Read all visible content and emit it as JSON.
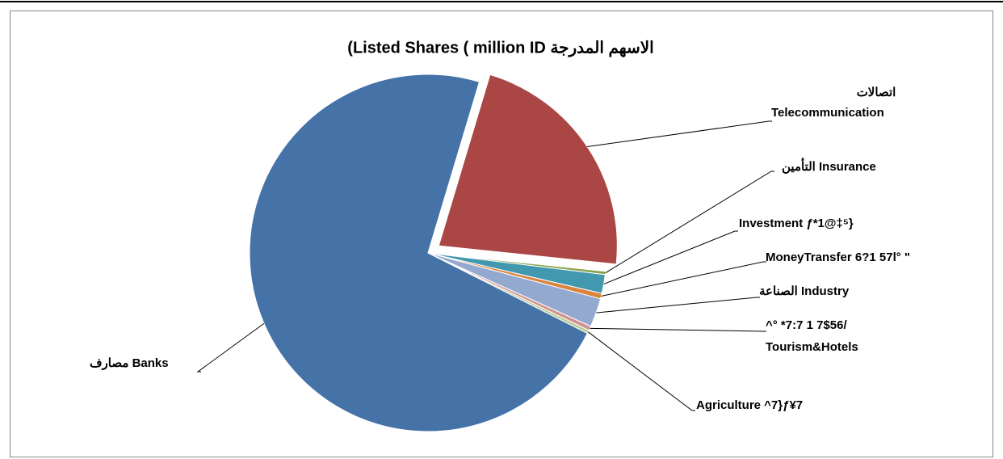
{
  "chart_data": {
    "type": "pie",
    "title": "(Listed Shares ( million ID  الاسهم المدرجة",
    "categories": [
      [
        "اتصالات",
        "Telecommunication"
      ],
      "التأمين  Insurance",
      "Investment  ƒ*1@‡⁵}",
      "MoneyTransfer 6?1 57l° \"",
      "الصناعة Industry",
      [
        "^° *7:7 1 7$56/",
        "Tourism&Hotels"
      ],
      "Agriculture ^7}ƒ¥7",
      "مصارف Banks"
    ],
    "values": [
      22,
      0.3,
      1.7,
      0.5,
      2.6,
      0.4,
      0.3,
      72.2
    ],
    "colors": [
      "#aa4643",
      "#89a54e",
      "#4198af",
      "#db843d",
      "#93a9cf",
      "#d19392",
      "#b9cd96",
      "#4572a7"
    ],
    "exploded": [
      0
    ]
  }
}
